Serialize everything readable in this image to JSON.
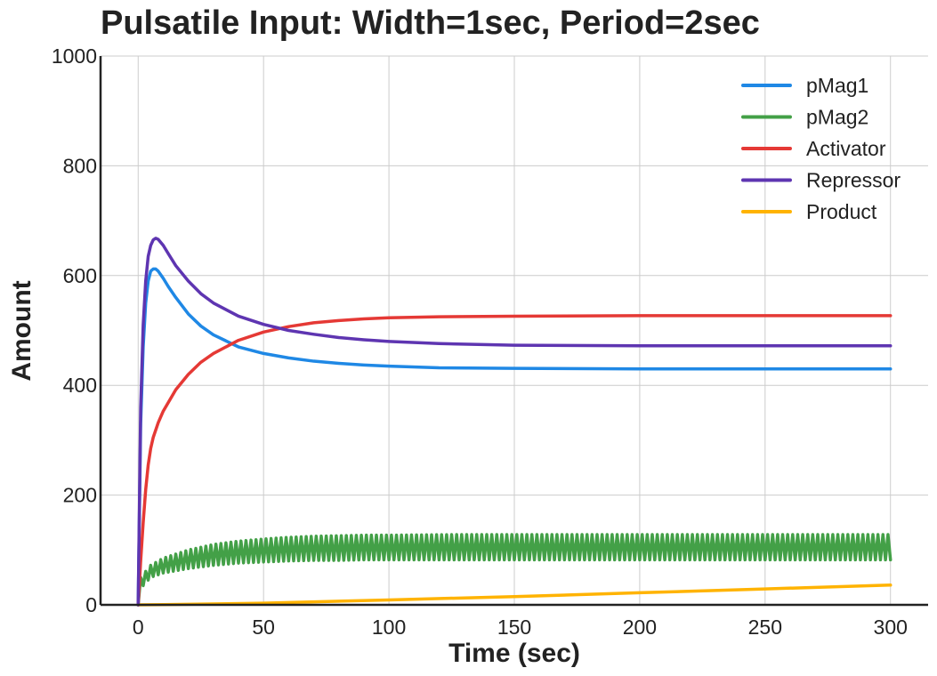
{
  "chart_data": {
    "type": "line",
    "title": "Pulsatile Input: Width=1sec, Period=2sec",
    "xlabel": "Time (sec)",
    "ylabel": "Amount",
    "xlim": [
      -15,
      315
    ],
    "ylim": [
      0,
      1000
    ],
    "xticks": [
      0,
      50,
      100,
      150,
      200,
      250,
      300
    ],
    "yticks": [
      0,
      200,
      400,
      600,
      800,
      1000
    ],
    "grid": true,
    "legend_position": "top-right",
    "series": [
      {
        "name": "pMag1",
        "color": "#1f88e5",
        "x": [
          0,
          1,
          2,
          3,
          4,
          5,
          6,
          7,
          8,
          10,
          12,
          15,
          20,
          25,
          30,
          40,
          50,
          60,
          70,
          80,
          90,
          100,
          120,
          150,
          200,
          250,
          300
        ],
        "y": [
          0,
          330,
          470,
          550,
          590,
          608,
          612,
          612,
          608,
          595,
          580,
          560,
          530,
          508,
          492,
          470,
          458,
          450,
          444,
          440,
          437,
          435,
          432,
          431,
          430,
          430,
          430
        ]
      },
      {
        "name": "pMag2",
        "color": "#43a047",
        "pulse_period": 2,
        "x": [
          0,
          1,
          5,
          10,
          20,
          30,
          40,
          50,
          60,
          70,
          80,
          90,
          100,
          125,
          150,
          200,
          250,
          300
        ],
        "y_low": [
          0,
          30,
          50,
          58,
          66,
          72,
          76,
          78,
          80,
          81,
          81,
          82,
          82,
          82,
          82,
          82,
          82,
          82
        ],
        "y_high": [
          0,
          50,
          72,
          85,
          100,
          110,
          116,
          120,
          123,
          125,
          126,
          127,
          127,
          128,
          128,
          128,
          128,
          128
        ]
      },
      {
        "name": "Activator",
        "color": "#e53935",
        "x": [
          0,
          1,
          2,
          3,
          4,
          5,
          6,
          8,
          10,
          15,
          20,
          25,
          30,
          40,
          50,
          60,
          70,
          80,
          90,
          100,
          120,
          150,
          200,
          250,
          300
        ],
        "y": [
          0,
          80,
          150,
          210,
          255,
          285,
          305,
          332,
          353,
          392,
          420,
          442,
          458,
          482,
          497,
          507,
          514,
          518,
          521,
          523,
          525,
          526,
          527,
          527,
          527
        ]
      },
      {
        "name": "Repressor",
        "color": "#5e35b1",
        "x": [
          0,
          1,
          2,
          3,
          4,
          5,
          6,
          7,
          8,
          10,
          12,
          15,
          20,
          25,
          30,
          40,
          50,
          60,
          70,
          80,
          90,
          100,
          120,
          150,
          200,
          250,
          300
        ],
        "y": [
          0,
          360,
          510,
          590,
          635,
          655,
          665,
          668,
          666,
          655,
          640,
          618,
          590,
          567,
          550,
          526,
          511,
          500,
          493,
          487,
          483,
          480,
          476,
          473,
          472,
          472,
          472
        ]
      },
      {
        "name": "Product",
        "color": "#ffb300",
        "x": [
          0,
          10,
          50,
          100,
          150,
          200,
          250,
          300
        ],
        "y": [
          0,
          0.5,
          3,
          9,
          15,
          22,
          29,
          36
        ]
      }
    ]
  }
}
